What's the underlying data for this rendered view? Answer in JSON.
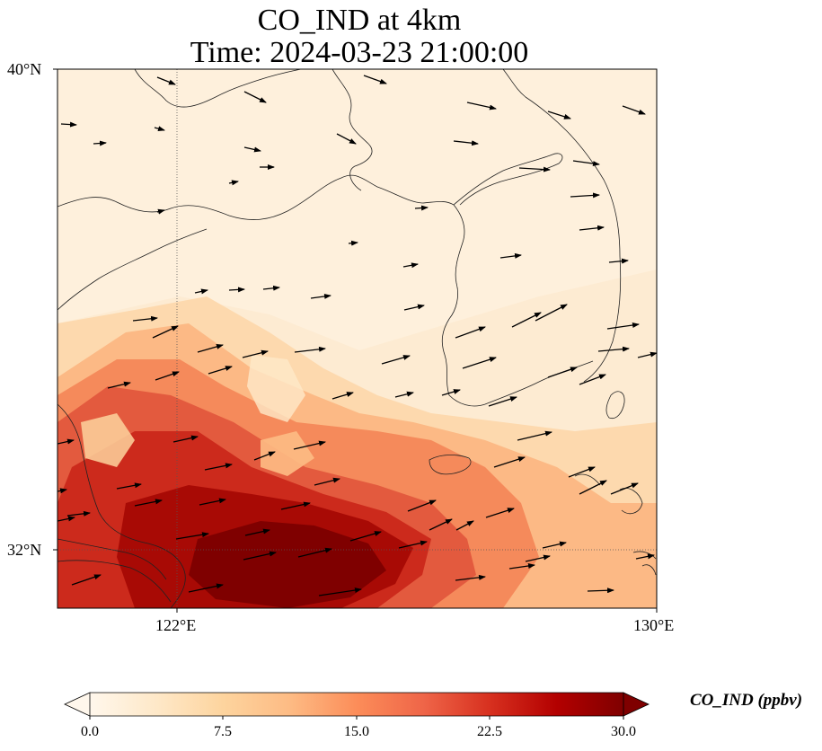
{
  "title": {
    "line1": "CO_IND at 4km",
    "line2": "Time: 2024-03-23 21:00:00"
  },
  "map": {
    "lat_labels": [
      "40°N",
      "32°N"
    ],
    "lon_labels": [
      "122°E",
      "130°E"
    ],
    "gridlines": "dotted",
    "coastlines": true,
    "variable": "CO_IND",
    "field_note": "high concentration plume over Yellow Sea / East China Sea, low over Korea and north China",
    "wind_vectors": "westerly / west-southwesterly"
  },
  "colorbar": {
    "label": "CO_IND (ppbv)",
    "ticks": [
      "0.0",
      "7.5",
      "15.0",
      "22.5",
      "30.0"
    ],
    "min": 0,
    "max": 30,
    "colormap": "OrRd",
    "colors": [
      "#fff7ec",
      "#fee8c8",
      "#fdd49e",
      "#fdbb84",
      "#fc8d59",
      "#ef6548",
      "#d7301f",
      "#b30000",
      "#7f0000"
    ],
    "extend": "both"
  }
}
